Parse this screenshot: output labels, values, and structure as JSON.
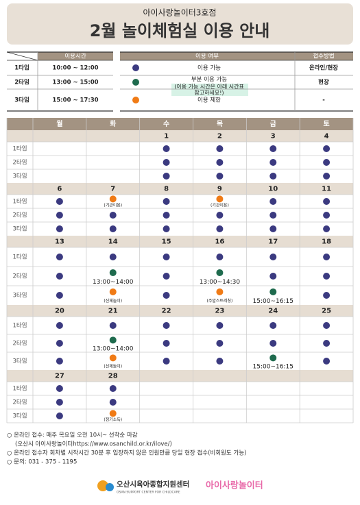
{
  "header": {
    "subtitle": "아이사랑놀이터3호점",
    "title": "2월 놀이체험실 이용 안내"
  },
  "time_table": {
    "header": "이용시간",
    "rows": [
      [
        "1타임",
        "10:00 ~ 12:00"
      ],
      [
        "2타임",
        "13:00 ~ 15:00"
      ],
      [
        "3타임",
        "15:00 ~ 17:30"
      ]
    ]
  },
  "legend": {
    "headers": [
      "이용 여부",
      "접수방법"
    ],
    "rows": [
      {
        "color": "#3b3a80",
        "label": "이용 가능",
        "method": "온라인/현장"
      },
      {
        "color": "#1f6b4e",
        "label": "부분 이용 가능",
        "detail": [
          "(이용 가능 시간은 아래 시간표",
          "참고하세요!)"
        ],
        "method": "현장"
      },
      {
        "color": "#f07b16",
        "label": "이용 제한",
        "method": "-"
      }
    ]
  },
  "calendar": {
    "weekdays": [
      "월",
      "화",
      "수",
      "목",
      "금",
      "토"
    ],
    "slot_labels": [
      "1타임",
      "2타임",
      "3타임"
    ],
    "weeks": [
      {
        "dates": [
          null,
          null,
          1,
          2,
          3,
          4
        ],
        "slots": [
          [
            null,
            null,
            0,
            0,
            0,
            0
          ],
          [
            null,
            null,
            0,
            0,
            0,
            0
          ],
          [
            null,
            null,
            0,
            0,
            0,
            0
          ]
        ]
      },
      {
        "dates": [
          6,
          7,
          8,
          9,
          10,
          11
        ],
        "slots": [
          [
            0,
            {
              "status": 2,
              "note": "(기관이용)"
            },
            0,
            {
              "status": 2,
              "note": "(기관이용)"
            },
            0,
            0
          ],
          [
            0,
            0,
            0,
            0,
            0,
            0
          ],
          [
            0,
            0,
            0,
            0,
            0,
            0
          ]
        ]
      },
      {
        "dates": [
          13,
          14,
          15,
          16,
          17,
          18
        ],
        "slots": [
          [
            0,
            0,
            0,
            0,
            0,
            0
          ],
          [
            0,
            {
              "status": 1,
              "note": "13:00~14:00"
            },
            0,
            {
              "status": 1,
              "note": "13:00~14:30"
            },
            0,
            0
          ],
          [
            0,
            {
              "status": 2,
              "note": "(신체놀이)"
            },
            0,
            {
              "status": 2,
              "note": "(주말스트레칭)"
            },
            {
              "status": 1,
              "note": "15:00~16:15"
            },
            0
          ]
        ]
      },
      {
        "dates": [
          20,
          21,
          22,
          23,
          24,
          25
        ],
        "slots": [
          [
            0,
            0,
            0,
            0,
            0,
            0
          ],
          [
            0,
            {
              "status": 1,
              "note": "13:00~14:00"
            },
            0,
            0,
            0,
            0
          ],
          [
            0,
            {
              "status": 2,
              "note": "(신체놀이)"
            },
            0,
            0,
            {
              "status": 1,
              "note": "15:00~16:15"
            },
            0
          ]
        ]
      },
      {
        "dates": [
          27,
          28,
          null,
          null,
          null,
          null
        ],
        "slots": [
          [
            0,
            0,
            null,
            null,
            null,
            null
          ],
          [
            0,
            0,
            null,
            null,
            null,
            null
          ],
          [
            0,
            {
              "status": 2,
              "note": "(정기소독)"
            },
            null,
            null,
            null,
            null
          ]
        ]
      }
    ]
  },
  "footer": {
    "notes": [
      "○ 온라인 접수: 매주 목요일 오전 10시~ 선착순 마감",
      "(오산시 아이사랑놀이터https://www.osanchild.or.kr/ilove/)",
      "○ 온라인 접수자 회차별 시작시간 30분 후 입장하지 않은 인원만큼 당일 현장 접수(비회원도 가능)",
      "○ 문의: 031 - 375 - 1195"
    ],
    "logos": {
      "center": "오산시육아종합지원센터",
      "center_en": "OSAN SUPPORT CENTER FOR CHILDCARE",
      "playground": "아이사랑놀이터"
    }
  }
}
